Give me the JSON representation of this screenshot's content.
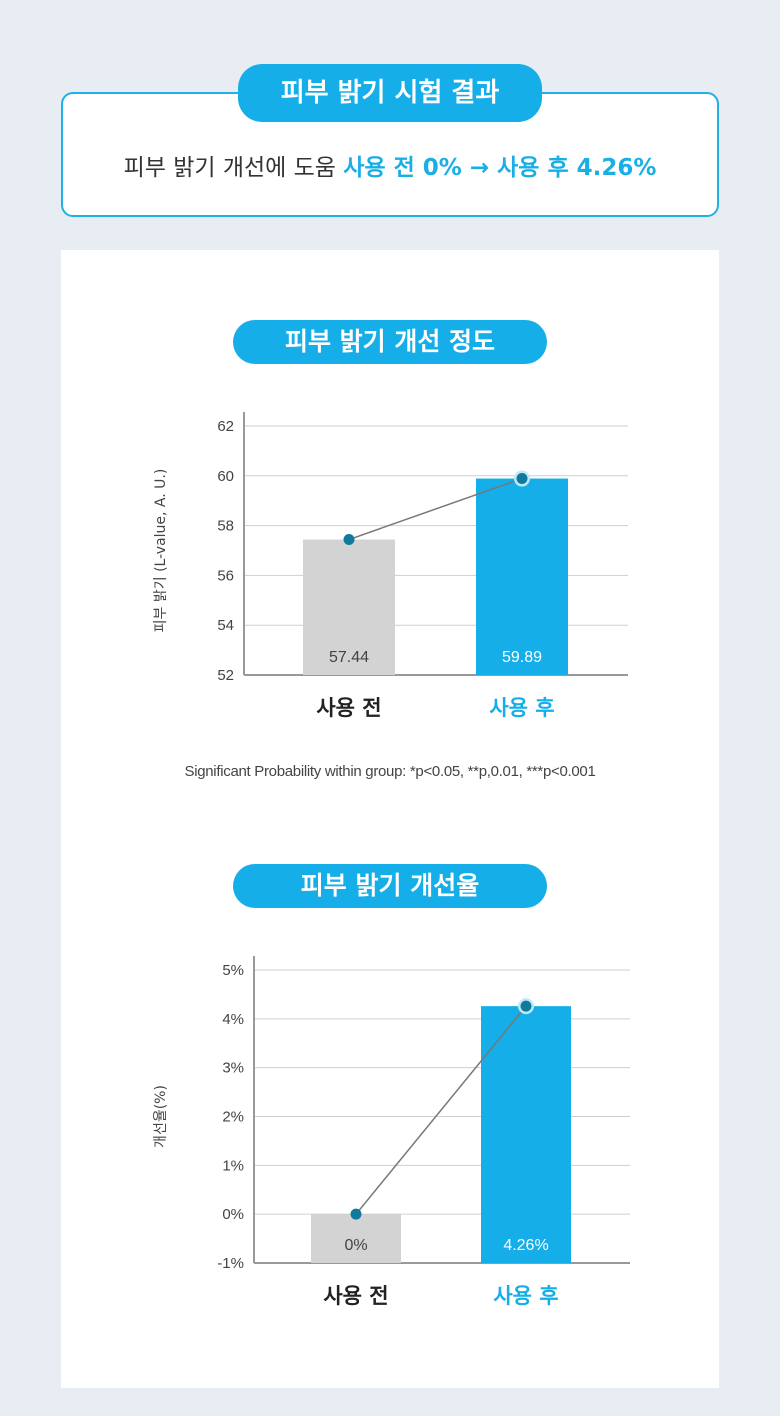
{
  "header": {
    "title": "피부 밝기 시험 결과",
    "summary_prefix": "피부 밝기 개선에 도움 ",
    "summary_highlight": "사용 전 0% → 사용 후 4.26%"
  },
  "colors": {
    "accent": "#16aee8",
    "before_bar": "#d3d3d3",
    "marker": "#0f7a9c",
    "line": "#777777",
    "grid": "#cfcfcf"
  },
  "note": "Significant Probability within group: *p<0.05, **p,0.01, ***p<0.001",
  "chart_data": [
    {
      "type": "bar",
      "title": "피부 밝기 개선 정도",
      "ylabel": "피부 밝기 (L-value, A. U.)",
      "categories": [
        "사용 전",
        "사용 후"
      ],
      "values": [
        57.44,
        59.89
      ],
      "value_labels": [
        "57.44",
        "59.89"
      ],
      "ylim": [
        52,
        62
      ],
      "yticks": [
        52,
        54,
        56,
        58,
        60,
        62
      ],
      "ytick_labels": [
        "52",
        "54",
        "56",
        "58",
        "60",
        "62"
      ],
      "grid": true
    },
    {
      "type": "bar",
      "title": "피부 밝기 개선율",
      "ylabel": "개선율(%)",
      "categories": [
        "사용 전",
        "사용 후"
      ],
      "values": [
        0,
        4.26
      ],
      "value_labels": [
        "0%",
        "4.26%"
      ],
      "ylim": [
        -1,
        5
      ],
      "yticks": [
        -1,
        0,
        1,
        2,
        3,
        4,
        5
      ],
      "ytick_labels": [
        "-1%",
        "0%",
        "1%",
        "2%",
        "3%",
        "4%",
        "5%"
      ],
      "grid": true
    }
  ]
}
